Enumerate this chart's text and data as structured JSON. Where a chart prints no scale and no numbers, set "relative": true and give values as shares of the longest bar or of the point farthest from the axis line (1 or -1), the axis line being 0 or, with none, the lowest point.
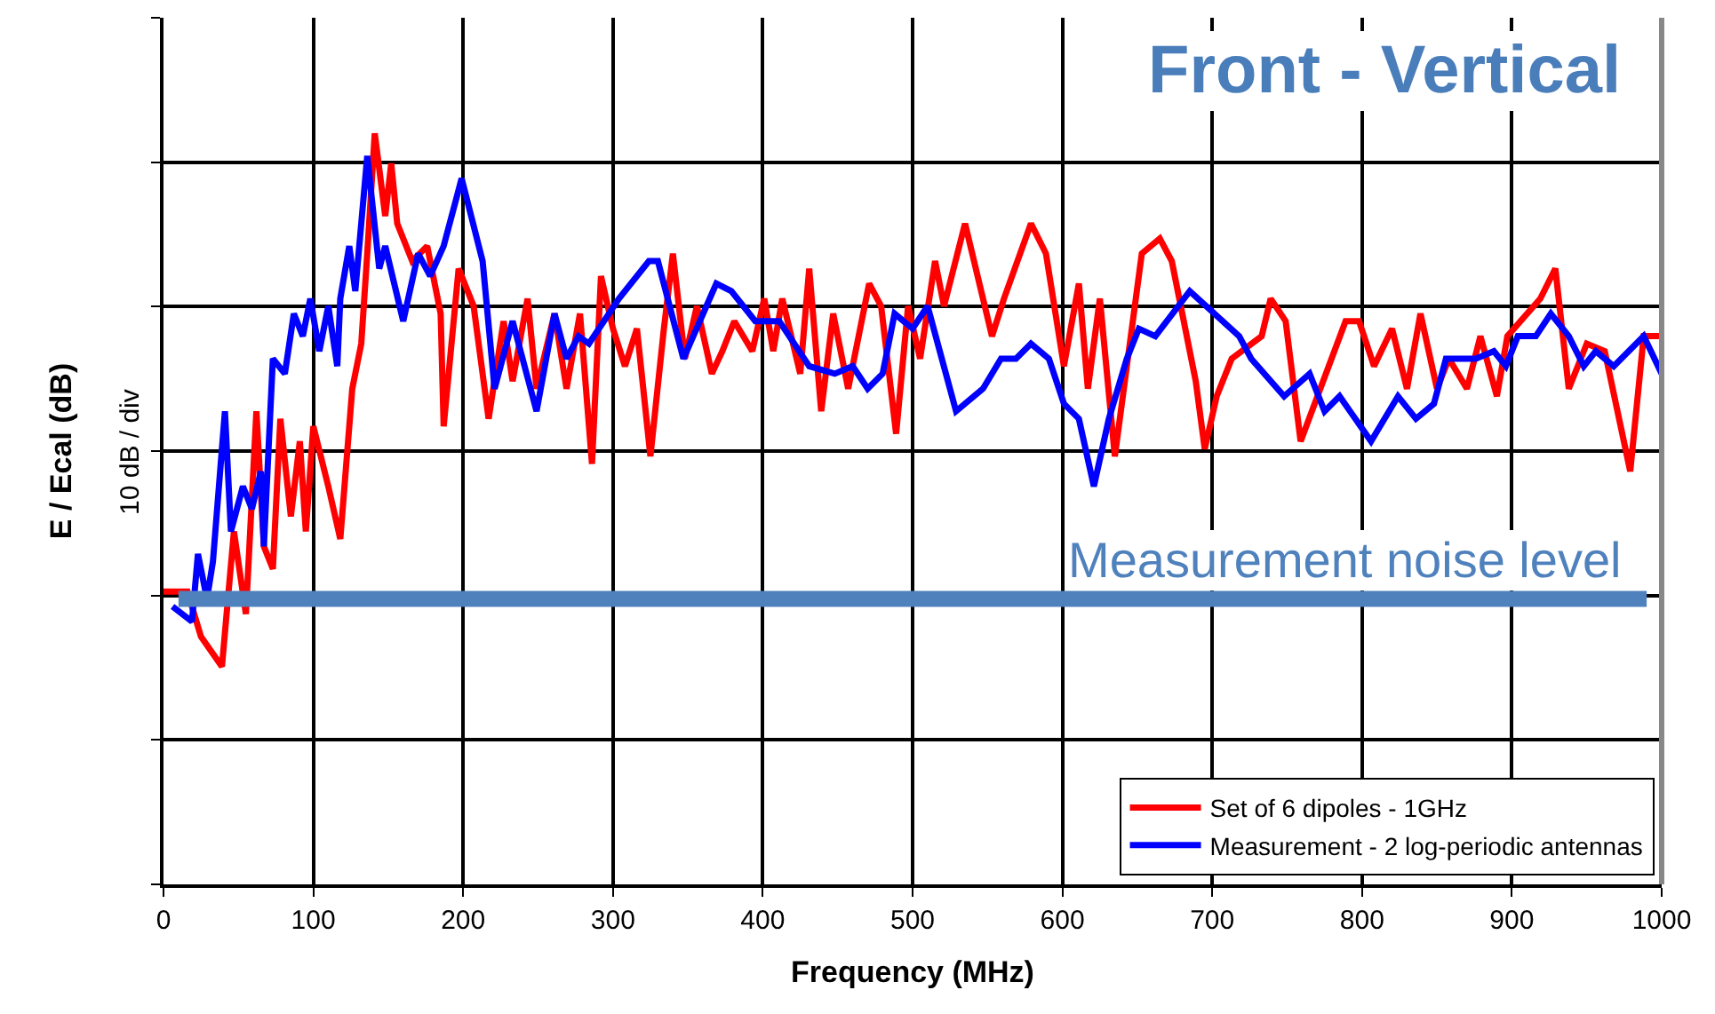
{
  "chart_data": {
    "type": "line",
    "title": "Front - Vertical",
    "xlabel": "Frequency (MHz)",
    "ylabel": "E / Ecal (dB)",
    "relative": true,
    "annotations": [
      "10 dB / div"
    ],
    "xlim": [
      0,
      1000
    ],
    "xticks": [
      0,
      100,
      200,
      300,
      400,
      500,
      600,
      700,
      800,
      900,
      1000
    ],
    "grid": true,
    "legend": "bottom right",
    "marker": "none",
    "line_style": "solid",
    "ref_lines": [
      {
        "axis": "y",
        "value": 0.38,
        "label": "Measurement noise level",
        "color": "#4f81bd"
      }
    ],
    "series": [
      {
        "name": "Set of 6 dipoles - 1GHz",
        "color": "#ff0000",
        "x": [
          0,
          16,
          25,
          31,
          39,
          47,
          55,
          62,
          67,
          73,
          78,
          85,
          91,
          95,
          100,
          110,
          118,
          126,
          132,
          136,
          141,
          148,
          152,
          156,
          166,
          176,
          185,
          187,
          197,
          207,
          217,
          227,
          233,
          243,
          249,
          261,
          269,
          278,
          286,
          292,
          300,
          308,
          316,
          325,
          334,
          340,
          348,
          356,
          366,
          373,
          381,
          393,
          401,
          407,
          413,
          425,
          431,
          439,
          447,
          457,
          471,
          479,
          489,
          497,
          505,
          515,
          521,
          535,
          553,
          561,
          579,
          589,
          601,
          611,
          617,
          625,
          635,
          653,
          665,
          673,
          689,
          695,
          703,
          713,
          733,
          739,
          749,
          759,
          789,
          798,
          808,
          820,
          830,
          839,
          850,
          858,
          870,
          879,
          890,
          897,
          919,
          929,
          938,
          950,
          962,
          979,
          988,
          1000
        ],
        "values": [
          0.39,
          0.39,
          0.33,
          null,
          0.29,
          0.47,
          0.36,
          0.63,
          0.45,
          0.42,
          0.62,
          0.49,
          0.59,
          0.47,
          0.61,
          0.53,
          0.46,
          0.66,
          0.72,
          0.84,
          1.0,
          0.89,
          0.96,
          0.88,
          0.83,
          0.85,
          0.76,
          0.61,
          0.82,
          0.77,
          0.62,
          0.75,
          0.67,
          0.78,
          0.66,
          0.76,
          0.66,
          0.76,
          0.56,
          0.81,
          0.74,
          0.69,
          0.74,
          0.57,
          0.74,
          0.84,
          0.7,
          0.77,
          0.68,
          0.71,
          0.75,
          0.71,
          0.78,
          0.71,
          0.78,
          0.68,
          0.82,
          0.63,
          0.76,
          0.66,
          0.8,
          0.77,
          0.6,
          0.77,
          0.7,
          0.83,
          0.77,
          0.88,
          0.73,
          0.78,
          0.88,
          0.84,
          0.69,
          0.8,
          0.66,
          0.78,
          0.57,
          0.84,
          0.86,
          0.83,
          0.67,
          0.58,
          0.65,
          0.7,
          0.73,
          0.78,
          0.75,
          0.59,
          0.75,
          0.75,
          0.69,
          0.74,
          0.66,
          0.76,
          0.66,
          0.7,
          0.66,
          0.73,
          0.65,
          0.73,
          0.78,
          0.82,
          0.66,
          0.72,
          0.71,
          0.55,
          0.73,
          0.73
        ]
      },
      {
        "name": "Measurement - 2 log-periodic antennas",
        "color": "#0000ff",
        "x": [
          6,
          19,
          23,
          29,
          33,
          37,
          41,
          45,
          53,
          59,
          65,
          67,
          73,
          81,
          87,
          93,
          98,
          104,
          110,
          116,
          118,
          124,
          128,
          136,
          144,
          148,
          160,
          170,
          178,
          187,
          199,
          213,
          221,
          233,
          249,
          261,
          269,
          277,
          284,
          304,
          324,
          330,
          347,
          369,
          379,
          395,
          411,
          431,
          448,
          460,
          470,
          480,
          488,
          500,
          510,
          529,
          547,
          559,
          569,
          579,
          591,
          601,
          611,
          621,
          631,
          643,
          651,
          662,
          685,
          718,
          726,
          748,
          765,
          775,
          785,
          806,
          824,
          836,
          848,
          856,
          876,
          888,
          896,
          904,
          916,
          926,
          938,
          948,
          956,
          968,
          988,
          1000
        ],
        "values": [
          0.37,
          0.35,
          0.44,
          0.38,
          0.43,
          null,
          0.63,
          0.47,
          0.53,
          0.5,
          0.55,
          0.45,
          0.7,
          0.68,
          0.76,
          0.73,
          0.78,
          0.71,
          0.77,
          0.69,
          0.78,
          0.85,
          0.79,
          0.97,
          0.82,
          0.85,
          0.75,
          0.84,
          0.81,
          0.85,
          0.94,
          0.83,
          0.66,
          0.75,
          0.63,
          0.76,
          0.7,
          0.73,
          0.72,
          0.78,
          0.83,
          0.83,
          0.7,
          0.8,
          0.79,
          0.75,
          0.75,
          0.69,
          0.68,
          0.69,
          0.66,
          0.68,
          0.76,
          0.74,
          0.77,
          0.63,
          0.66,
          0.7,
          0.7,
          0.72,
          0.7,
          0.64,
          0.62,
          0.53,
          0.62,
          0.7,
          0.74,
          0.73,
          0.79,
          0.73,
          0.7,
          0.65,
          0.68,
          0.63,
          0.65,
          0.59,
          0.65,
          0.62,
          0.64,
          0.7,
          0.7,
          0.71,
          0.69,
          0.73,
          0.73,
          0.76,
          0.73,
          0.69,
          0.71,
          0.69,
          0.73,
          0.68
        ]
      }
    ]
  }
}
